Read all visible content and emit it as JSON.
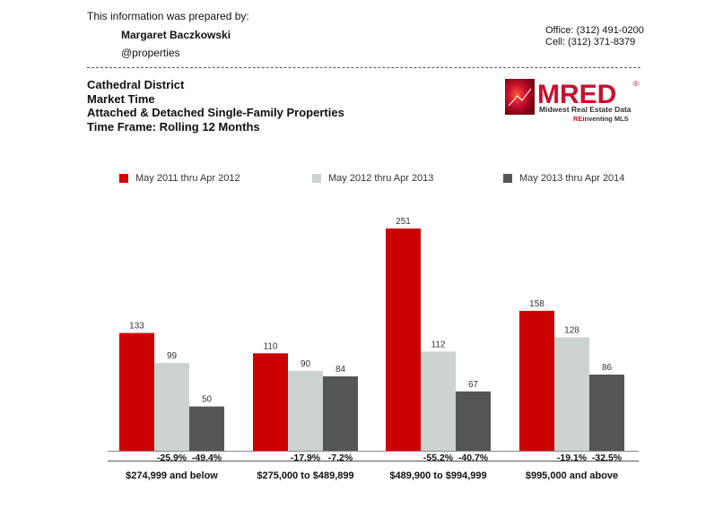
{
  "header": {
    "prepared_by": "This information was prepared by:",
    "agent_name": "Margaret Baczkowski",
    "company": "@properties",
    "office_phone": "Office: (312) 491-0200",
    "cell_phone": "Cell: (312) 371-8379"
  },
  "report": {
    "area": "Cathedral District",
    "metric": "Market Time",
    "property_types": "Attached & Detached Single-Family Properties",
    "time_frame": "Time Frame: Rolling 12 Months"
  },
  "logo": {
    "text": "MRED",
    "registered": "®",
    "tagline": "Midwest Real Estate Data",
    "tagline2_prefix": "RE",
    "tagline2_rest": "inventing MLS",
    "brand_color": "#c8102e"
  },
  "chart_data": {
    "type": "bar",
    "categories": [
      "$274,999 and below",
      "$275,000 to $489,899",
      "$489,900 to $994,999",
      "$995,000 and above"
    ],
    "series": [
      {
        "name": "May 2011 thru Apr 2012",
        "color": "#cc0000",
        "values": [
          133,
          110,
          251,
          158
        ]
      },
      {
        "name": "May 2012 thru Apr 2013",
        "color": "#ccd3d1",
        "values": [
          99,
          90,
          112,
          128
        ]
      },
      {
        "name": "May 2013 thru Apr 2014",
        "color": "#555555",
        "values": [
          50,
          84,
          67,
          86
        ]
      }
    ],
    "value_labels": [
      [
        "133",
        "99",
        "50"
      ],
      [
        "110",
        "90",
        "84"
      ],
      [
        "251",
        "112",
        "67"
      ],
      [
        "158",
        "128",
        "86"
      ]
    ],
    "change_labels": [
      [
        "-25.9%",
        "-49.4%"
      ],
      [
        "-17.9%",
        "-7.2%"
      ],
      [
        "-55.2%",
        "-40.7%"
      ],
      [
        "-19.1%",
        "-32.5%"
      ]
    ],
    "ylim": [
      0,
      251
    ],
    "legend_position": "top",
    "grid": false
  }
}
